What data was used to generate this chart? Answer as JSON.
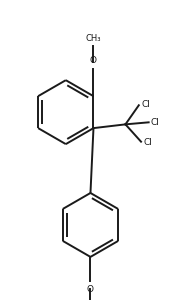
{
  "background": "#ffffff",
  "line_color": "#1a1a1a",
  "text_color": "#1a1a1a",
  "line_width": 1.4,
  "font_size": 6.5,
  "figsize": [
    1.88,
    3.07
  ],
  "dpi": 100,
  "xlim": [
    -2.2,
    2.8
  ],
  "ylim": [
    -1.8,
    6.0
  ]
}
